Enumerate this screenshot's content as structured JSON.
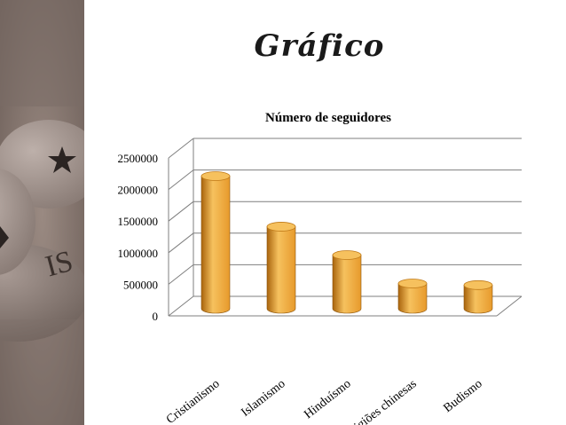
{
  "slide": {
    "title": "Gráfico"
  },
  "sidebar": {
    "image_icons": [
      "crescent-star-icon"
    ]
  },
  "colors": {
    "bar_light": "#f6c15e",
    "bar_mid": "#e79a2c",
    "bar_dark": "#a9640d",
    "grid": "#7f7f7f",
    "photo_tone": "#8a7b73"
  },
  "chart_data": {
    "type": "bar",
    "title": "Número de seguidores",
    "categories": [
      "Cristianismo",
      "Islamismo",
      "Hinduísmo",
      "Religiões chinesas",
      "Budismo"
    ],
    "values": [
      2100000,
      1300000,
      850000,
      400000,
      375000
    ],
    "y_ticks": [
      "0",
      "500000",
      "1000000",
      "1500000",
      "2000000",
      "2500000"
    ],
    "ylim": [
      0,
      2500000
    ],
    "xlabel": "",
    "ylabel": "",
    "grid": true,
    "legend": "none",
    "style": "3d-cylinder"
  }
}
